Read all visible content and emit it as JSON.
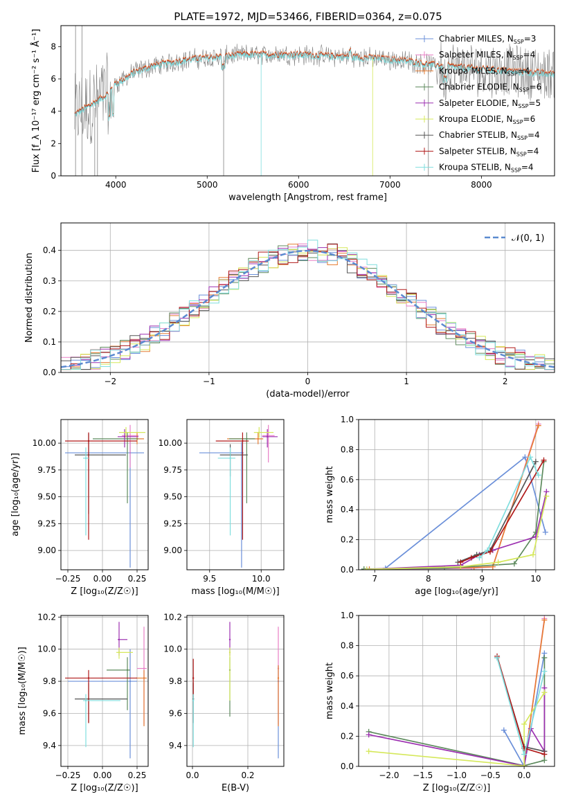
{
  "title": "PLATE=1972, MJD=53466, FIBERID=0364, z=0.075",
  "colors": {
    "Chabrier MILES": "#6a8fd9",
    "Salpeter MILES": "#e87fc6",
    "Kroupa MILES": "#e67d33",
    "Chabrier ELODIE": "#5d8a5d",
    "Salpeter ELODIE": "#9c2fb0",
    "Kroupa ELODIE": "#d5e85a",
    "Chabrier STELIB": "#555555",
    "Salpeter STELIB": "#b01818",
    "Kroupa STELIB": "#7fdede",
    "data": "#808080"
  },
  "chart_data": [
    {
      "id": "spectrum",
      "type": "line",
      "title": "PLATE=1972, MJD=53466, FIBERID=0364, z=0.075",
      "xlabel": "wavelength [Angstrom, rest frame]",
      "ylabel": "Flux [f_λ 10⁻¹⁷ erg cm⁻² s⁻¹ Å⁻¹]",
      "xlim": [
        3400,
        8800
      ],
      "ylim": [
        0,
        9.3
      ],
      "xticks": [
        4000,
        5000,
        6000,
        7000,
        8000
      ],
      "yticks": [
        0,
        2,
        4,
        6,
        8
      ],
      "legend": [
        {
          "label": "Chabrier MILES, N",
          "sub": "SSP",
          "n": "=3"
        },
        {
          "label": "Salpeter MILES, N",
          "sub": "SSP",
          "n": "=4"
        },
        {
          "label": "Kroupa MILES, N",
          "sub": "SSP",
          "n": "=4"
        },
        {
          "label": "Chabrier ELODIE, N",
          "sub": "SSP",
          "n": "=6"
        },
        {
          "label": "Salpeter ELODIE, N",
          "sub": "SSP",
          "n": "=5"
        },
        {
          "label": "Kroupa ELODIE, N",
          "sub": "SSP",
          "n": "=6"
        },
        {
          "label": "Chabrier STELIB, N",
          "sub": "SSP",
          "n": "=4"
        },
        {
          "label": "Salpeter STELIB, N",
          "sub": "SSP",
          "n": "=4"
        },
        {
          "label": "Kroupa STELIB, N",
          "sub": "SSP",
          "n": "=4"
        }
      ],
      "continuum": {
        "x": [
          3550,
          3700,
          3900,
          4000,
          4100,
          4200,
          4400,
          4600,
          4800,
          5000,
          5200,
          5400,
          5600,
          5800,
          6000,
          6200,
          6400,
          6600,
          6800,
          7000,
          7200,
          7400,
          7600,
          8000,
          8400,
          8800
        ],
        "y": [
          3.8,
          4.3,
          5.0,
          5.7,
          6.0,
          6.4,
          6.8,
          7.0,
          7.2,
          7.3,
          7.4,
          7.5,
          7.5,
          7.5,
          7.5,
          7.45,
          7.4,
          7.35,
          7.3,
          7.2,
          7.1,
          6.9,
          6.8,
          6.6,
          6.45,
          6.3
        ]
      }
    },
    {
      "id": "residuals",
      "type": "line",
      "xlabel": "(data-model)/error",
      "ylabel": "Normed distribution",
      "xlim": [
        -2.5,
        2.5
      ],
      "ylim": [
        0,
        0.49
      ],
      "xticks": [
        -2,
        -1,
        0,
        1,
        2
      ],
      "yticks": [
        0.0,
        0.1,
        0.2,
        0.3,
        0.4
      ],
      "grid": true,
      "legend": [
        {
          "label": "𝒩(0, 1)",
          "placement": "top-right"
        }
      ]
    },
    {
      "id": "age-vs-Z",
      "type": "scatter",
      "xlabel": "Z [log₁₀(Z/Z☉)]",
      "ylabel": "age  [log₁₀(age/yr)]",
      "xlim": [
        -0.3,
        0.33
      ],
      "ylim": [
        8.82,
        10.22
      ],
      "xticks": [
        -0.25,
        0.0,
        0.25
      ],
      "yticks": [
        9.0,
        9.25,
        9.5,
        9.75,
        10.0
      ],
      "grid": true,
      "points": [
        {
          "model": "Chabrier MILES",
          "x": 0.2,
          "y": 9.91,
          "xe": [
            0.47,
            0.1
          ],
          "ye": [
            1.07,
            0.1
          ]
        },
        {
          "model": "Salpeter MILES",
          "x": 0.2,
          "y": 10.07,
          "xe": [
            0.06,
            0.06
          ],
          "ye": [
            0.3,
            0.1
          ]
        },
        {
          "model": "Kroupa MILES",
          "x": 0.25,
          "y": 10.04,
          "xe": [
            0.07,
            0.05
          ],
          "ye": [
            0.05,
            0.06
          ]
        },
        {
          "model": "Chabrier ELODIE",
          "x": 0.18,
          "y": 10.04,
          "xe": [
            0.25,
            0.08
          ],
          "ye": [
            0.6,
            0.06
          ]
        },
        {
          "model": "Salpeter ELODIE",
          "x": 0.16,
          "y": 10.06,
          "xe": [
            0.05,
            0.1
          ],
          "ye": [
            0.1,
            0.07
          ]
        },
        {
          "model": "Kroupa ELODIE",
          "x": 0.17,
          "y": 10.1,
          "xe": [
            0.05,
            0.14
          ],
          "ye": [
            0.05,
            0.05
          ]
        },
        {
          "model": "Chabrier STELIB",
          "x": -0.1,
          "y": 9.89,
          "xe": [
            0.1,
            0.27
          ],
          "ye": [
            0.55,
            0.2
          ]
        },
        {
          "model": "Salpeter STELIB",
          "x": -0.1,
          "y": 10.02,
          "xe": [
            0.17,
            0.35
          ],
          "ye": [
            0.92,
            0.08
          ]
        },
        {
          "model": "Kroupa STELIB",
          "x": -0.12,
          "y": 9.86,
          "xe": [
            0.02,
            0.02
          ],
          "ye": [
            0.72,
            0.1
          ]
        }
      ]
    },
    {
      "id": "age-vs-mass",
      "type": "scatter",
      "xlabel": "mass [log₁₀(M/M☉)]",
      "xlim": [
        9.28,
        10.22
      ],
      "ylim": [
        8.82,
        10.22
      ],
      "xticks": [
        9.5,
        10.0
      ],
      "yticks": [
        9.0,
        9.25,
        9.5,
        9.75,
        10.0
      ],
      "grid": true,
      "points": [
        {
          "model": "Chabrier MILES",
          "x": 9.81,
          "y": 9.91,
          "xe": [
            0.41,
            0.02
          ],
          "ye": [
            1.07,
            0.1
          ]
        },
        {
          "model": "Salpeter MILES",
          "x": 10.07,
          "y": 10.07,
          "xe": [
            0.06,
            0.06
          ],
          "ye": [
            0.25,
            0.1
          ]
        },
        {
          "model": "Kroupa MILES",
          "x": 9.97,
          "y": 10.04,
          "xe": [
            0.3,
            0.05
          ],
          "ye": [
            0.05,
            0.06
          ]
        },
        {
          "model": "Chabrier ELODIE",
          "x": 9.86,
          "y": 10.04,
          "xe": [
            0.17,
            0.08
          ],
          "ye": [
            0.6,
            0.06
          ]
        },
        {
          "model": "Salpeter ELODIE",
          "x": 10.06,
          "y": 10.06,
          "xe": [
            0.05,
            0.1
          ],
          "ye": [
            0.1,
            0.07
          ]
        },
        {
          "model": "Kroupa ELODIE",
          "x": 9.98,
          "y": 10.1,
          "xe": [
            0.05,
            0.14
          ],
          "ye": [
            0.05,
            0.05
          ]
        },
        {
          "model": "Chabrier STELIB",
          "x": 9.7,
          "y": 9.89,
          "xe": [
            0.1,
            0.17
          ],
          "ye": [
            0.2,
            0.1
          ]
        },
        {
          "model": "Salpeter STELIB",
          "x": 9.82,
          "y": 10.02,
          "xe": [
            0.26,
            0.06
          ],
          "ye": [
            0.92,
            0.08
          ]
        },
        {
          "model": "Kroupa STELIB",
          "x": 9.7,
          "y": 9.86,
          "xe": [
            0.12,
            0.05
          ],
          "ye": [
            0.72,
            0.1
          ]
        }
      ]
    },
    {
      "id": "weight-vs-age",
      "type": "line",
      "xlabel": "age  [log₁₀(age/yr)]",
      "ylabel": "mass weight",
      "xlim": [
        6.7,
        10.35
      ],
      "ylim": [
        0,
        1.0
      ],
      "xticks": [
        7,
        8,
        9,
        10
      ],
      "yticks": [
        0.0,
        0.2,
        0.4,
        0.6,
        0.8,
        1.0
      ],
      "grid": true,
      "series": [
        {
          "model": "Chabrier MILES",
          "x": [
            7.2,
            9.8,
            10.18
          ],
          "y": [
            0.01,
            0.75,
            0.25
          ]
        },
        {
          "model": "Salpeter MILES",
          "x": [
            6.85,
            8.8,
            9.2,
            10.05
          ],
          "y": [
            0.003,
            0.01,
            0.02,
            0.97
          ]
        },
        {
          "model": "Kroupa MILES",
          "x": [
            6.9,
            8.85,
            9.2,
            10.05
          ],
          "y": [
            0.004,
            0.015,
            0.02,
            0.96
          ]
        },
        {
          "model": "Chabrier ELODIE",
          "x": [
            6.8,
            8.3,
            9.6,
            10.0,
            10.15
          ],
          "y": [
            0.005,
            0.01,
            0.04,
            0.25,
            0.72
          ]
        },
        {
          "model": "Salpeter ELODIE",
          "x": [
            6.85,
            8.6,
            8.95,
            9.2,
            10.0,
            10.2
          ],
          "y": [
            0.003,
            0.03,
            0.1,
            0.13,
            0.22,
            0.52
          ]
        },
        {
          "model": "Kroupa ELODIE",
          "x": [
            6.85,
            8.6,
            9.3,
            9.95,
            10.2
          ],
          "y": [
            0.003,
            0.02,
            0.05,
            0.1,
            0.49
          ]
        },
        {
          "model": "Chabrier STELIB",
          "x": [
            8.55,
            8.9,
            9.15,
            10.0
          ],
          "y": [
            0.05,
            0.1,
            0.13,
            0.72
          ]
        },
        {
          "model": "Salpeter STELIB",
          "x": [
            8.6,
            8.8,
            9.15,
            10.15
          ],
          "y": [
            0.05,
            0.08,
            0.12,
            0.73
          ]
        },
        {
          "model": "Kroupa STELIB",
          "x": [
            8.95,
            9.1,
            9.9,
            10.05
          ],
          "y": [
            0.08,
            0.13,
            0.75,
            0.63
          ]
        }
      ]
    },
    {
      "id": "mass-vs-Z",
      "type": "scatter",
      "xlabel": "Z [log₁₀(Z/Z☉)]",
      "ylabel": "mass [log₁₀(M/M☉)]",
      "xlim": [
        -0.3,
        0.33
      ],
      "ylim": [
        9.27,
        10.21
      ],
      "xticks": [
        -0.25,
        0.0,
        0.25
      ],
      "yticks": [
        9.4,
        9.6,
        9.8,
        10.0,
        10.2
      ],
      "grid": true,
      "points": [
        {
          "model": "Chabrier MILES",
          "x": 0.2,
          "y": 9.8,
          "xe": [
            0.45,
            0.05
          ],
          "ye": [
            0.48,
            0.2
          ]
        },
        {
          "model": "Salpeter MILES",
          "x": 0.3,
          "y": 9.88,
          "xe": [
            0.05,
            0.02
          ],
          "ye": [
            0.35,
            0.26
          ]
        },
        {
          "model": "Kroupa MILES",
          "x": 0.3,
          "y": 9.82,
          "xe": [
            0.06,
            0.02
          ],
          "ye": [
            0.3,
            0.05
          ]
        },
        {
          "model": "Chabrier ELODIE",
          "x": 0.18,
          "y": 9.87,
          "xe": [
            0.15,
            0.02
          ],
          "ye": [
            0.25,
            0.08
          ]
        },
        {
          "model": "Salpeter ELODIE",
          "x": 0.12,
          "y": 10.06,
          "xe": [
            0.01,
            0.06
          ],
          "ye": [
            0.1,
            0.11
          ]
        },
        {
          "model": "Kroupa ELODIE",
          "x": 0.12,
          "y": 9.98,
          "xe": [
            0.02,
            0.1
          ],
          "ye": [
            0.04,
            0.03
          ]
        },
        {
          "model": "Chabrier STELIB",
          "x": -0.1,
          "y": 9.69,
          "xe": [
            0.1,
            0.28
          ],
          "ye": [
            0.15,
            0.1
          ]
        },
        {
          "model": "Salpeter STELIB",
          "x": -0.1,
          "y": 9.82,
          "xe": [
            0.17,
            0.35
          ],
          "ye": [
            0.28,
            0.05
          ]
        },
        {
          "model": "Kroupa STELIB",
          "x": -0.12,
          "y": 9.68,
          "xe": [
            0.02,
            0.25
          ],
          "ye": [
            0.29,
            0.04
          ]
        }
      ]
    },
    {
      "id": "mass-vs-EBV",
      "type": "scatter",
      "xlabel": "E(B-V)",
      "xlim": [
        -0.02,
        0.33
      ],
      "ylim": [
        9.27,
        10.21
      ],
      "xticks": [
        0.0,
        0.2
      ],
      "yticks": [
        9.4,
        9.6,
        9.8,
        10.0,
        10.2
      ],
      "grid": true,
      "points": [
        {
          "model": "Chabrier MILES",
          "x": 0.31,
          "y": 9.8,
          "ye": [
            0.48,
            0.1
          ]
        },
        {
          "model": "Salpeter MILES",
          "x": 0.31,
          "y": 9.88,
          "ye": [
            0.35,
            0.26
          ]
        },
        {
          "model": "Kroupa MILES",
          "x": 0.31,
          "y": 9.82,
          "ye": [
            0.3,
            0.08
          ]
        },
        {
          "model": "Chabrier ELODIE",
          "x": 0.135,
          "y": 9.87,
          "ye": [
            0.29,
            0.08
          ]
        },
        {
          "model": "Salpeter ELODIE",
          "x": 0.135,
          "y": 10.06,
          "ye": [
            0.1,
            0.11
          ]
        },
        {
          "model": "Kroupa ELODIE",
          "x": 0.135,
          "y": 9.98,
          "ye": [
            0.3,
            0.03
          ]
        },
        {
          "model": "Chabrier STELIB",
          "x": 0.003,
          "y": 9.69,
          "ye": [
            0.15,
            0.1
          ]
        },
        {
          "model": "Salpeter STELIB",
          "x": 0.003,
          "y": 9.82,
          "ye": [
            0.12,
            0.12
          ]
        },
        {
          "model": "Kroupa STELIB",
          "x": 0.003,
          "y": 9.68,
          "ye": [
            0.29,
            0.04
          ]
        }
      ]
    },
    {
      "id": "weight-vs-Z",
      "type": "line",
      "xlabel": "Z [log₁₀(Z/Z☉)]",
      "ylabel": "mass weight",
      "xlim": [
        -2.45,
        0.45
      ],
      "ylim": [
        0,
        1.0
      ],
      "xticks": [
        -2.0,
        -1.5,
        -1.0,
        -0.5,
        0.0
      ],
      "yticks": [
        0.0,
        0.2,
        0.4,
        0.6,
        0.8,
        1.0
      ],
      "grid": true,
      "series": [
        {
          "model": "Chabrier MILES",
          "x": [
            -0.3,
            0.0,
            0.3
          ],
          "y": [
            0.24,
            0.0,
            0.75
          ]
        },
        {
          "model": "Salpeter MILES",
          "x": [
            0.0,
            0.3
          ],
          "y": [
            0.003,
            0.98
          ]
        },
        {
          "model": "Kroupa MILES",
          "x": [
            0.0,
            0.3
          ],
          "y": [
            0.004,
            0.97
          ]
        },
        {
          "model": "Chabrier ELODIE",
          "x": [
            -2.3,
            0.0,
            0.3,
            0.3
          ],
          "y": [
            0.23,
            0.005,
            0.04,
            0.72
          ]
        },
        {
          "model": "Salpeter ELODIE",
          "x": [
            -2.3,
            0.0,
            0.1,
            0.3,
            0.3
          ],
          "y": [
            0.21,
            0.003,
            0.25,
            0.1,
            0.52
          ]
        },
        {
          "model": "Kroupa ELODIE",
          "x": [
            -2.3,
            0.0,
            0.0,
            0.3
          ],
          "y": [
            0.1,
            0.003,
            0.28,
            0.49
          ]
        },
        {
          "model": "Chabrier STELIB",
          "x": [
            -0.4,
            0.0,
            0.3
          ],
          "y": [
            0.72,
            0.13,
            0.1
          ]
        },
        {
          "model": "Salpeter STELIB",
          "x": [
            -0.4,
            0.0,
            0.3
          ],
          "y": [
            0.73,
            0.12,
            0.08
          ]
        },
        {
          "model": "Kroupa STELIB",
          "x": [
            -0.4,
            0.0,
            0.3
          ],
          "y": [
            0.72,
            0.08,
            0.63
          ]
        }
      ]
    }
  ]
}
